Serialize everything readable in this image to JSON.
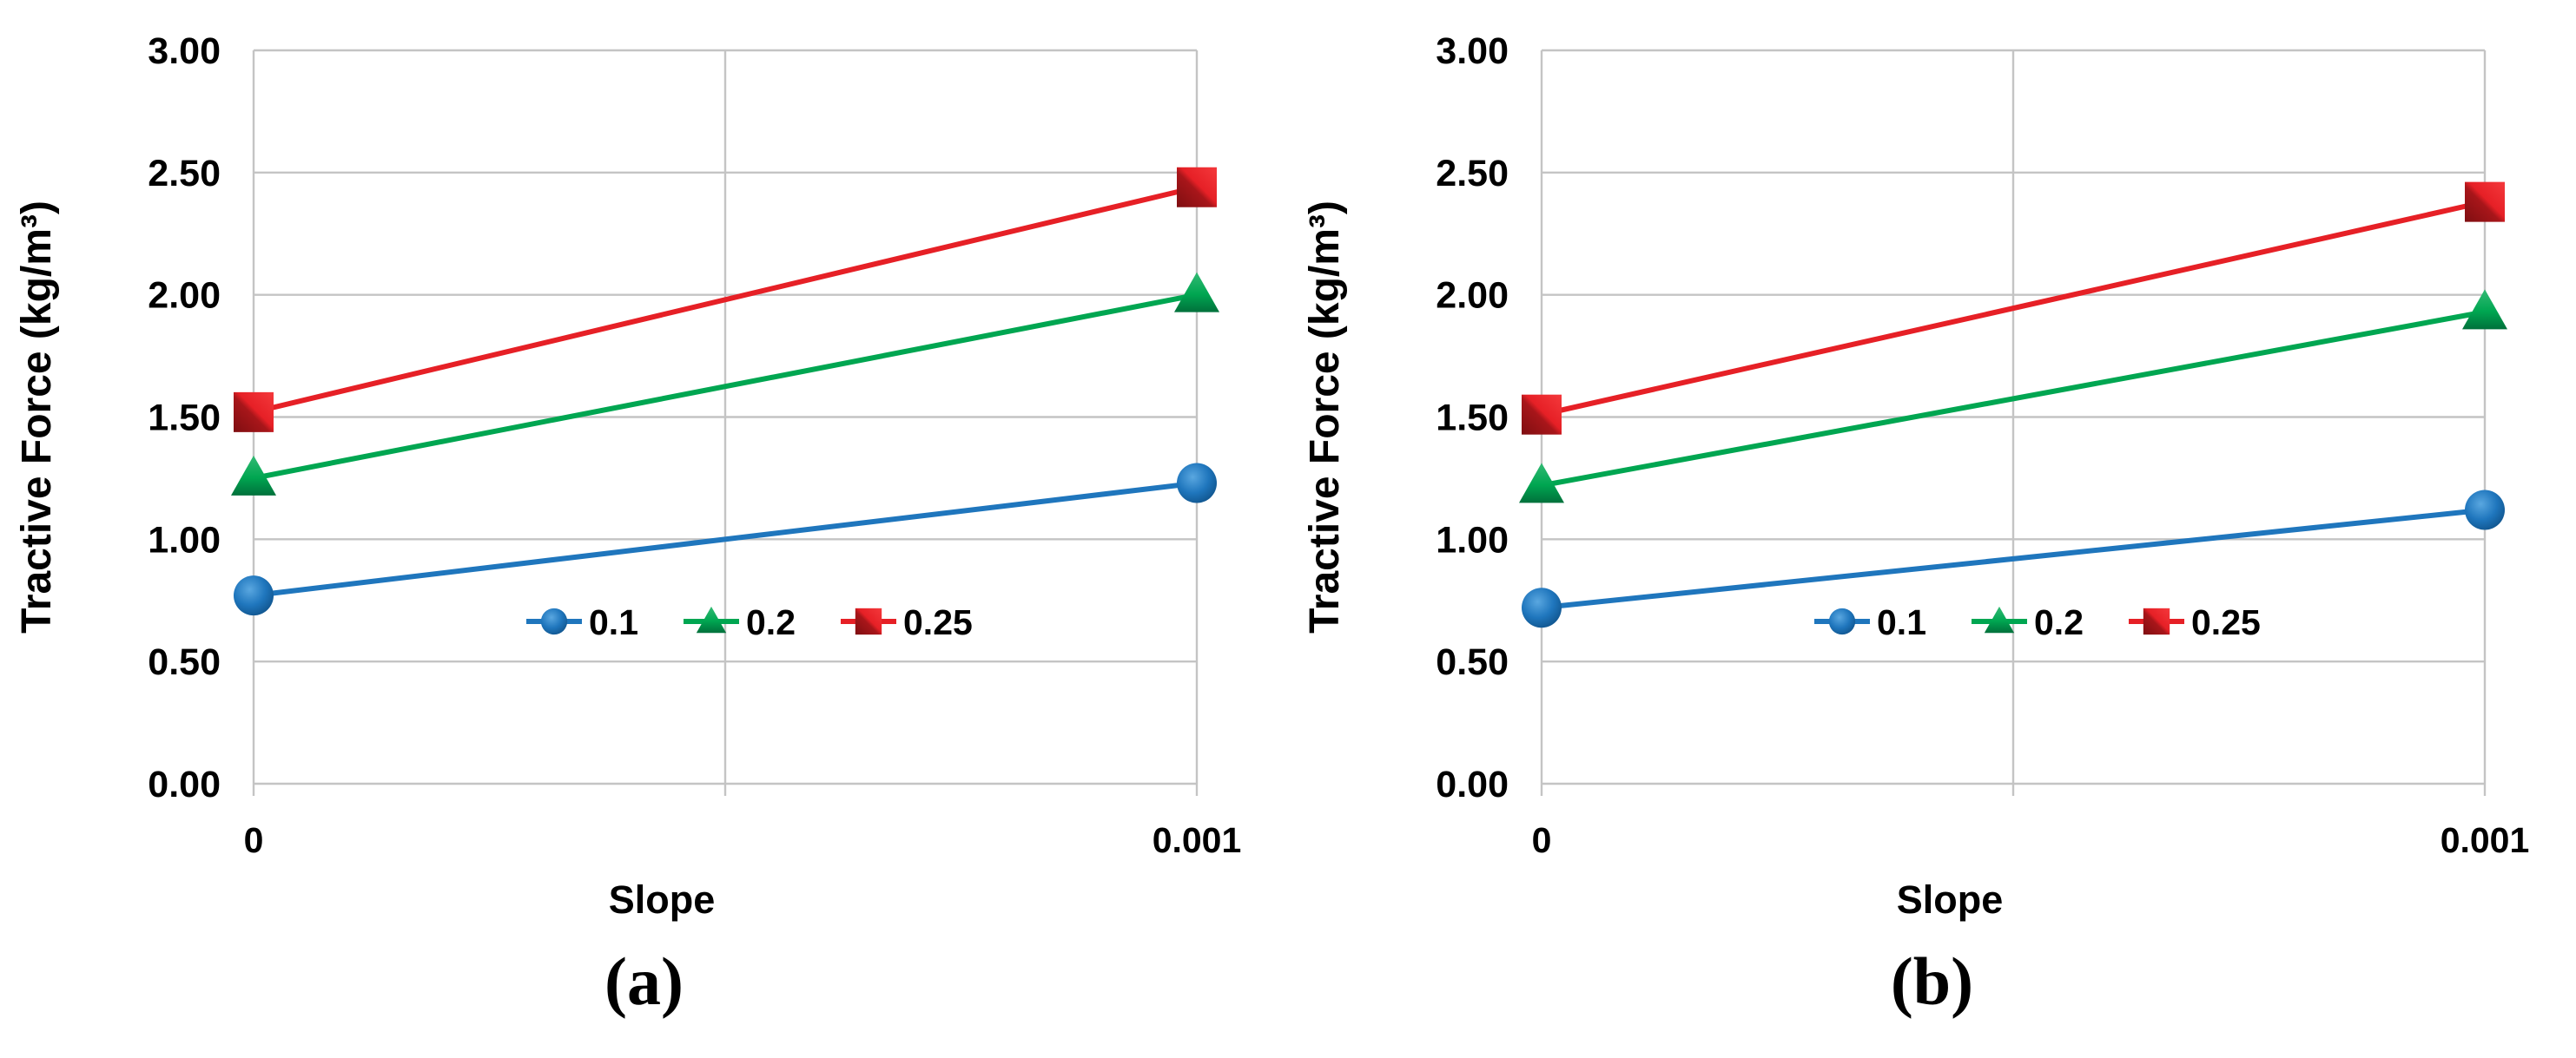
{
  "page": {
    "background": "#FFFFFF"
  },
  "chart_data": [
    {
      "type": "line",
      "caption": "(a)",
      "title": "",
      "xlabel": "Slope",
      "ylabel": "Tractive Force (kg/m³)",
      "x": [
        0,
        0.001
      ],
      "x_tick_labels": [
        "0",
        "0.001"
      ],
      "ylim": [
        0,
        3
      ],
      "ytick_step": 0.5,
      "y_tick_labels": [
        "0.00",
        "0.50",
        "1.00",
        "1.50",
        "2.00",
        "2.50",
        "3.00"
      ],
      "grid": true,
      "legend_position": "inside-bottom-center",
      "series": [
        {
          "name": "0.1",
          "marker": "circle",
          "color": "#1F76BD",
          "values": [
            0.77,
            1.23
          ]
        },
        {
          "name": "0.2",
          "marker": "triangle",
          "color": "#00A651",
          "values": [
            1.25,
            2.0
          ]
        },
        {
          "name": "0.25",
          "marker": "square",
          "color": "#E62026",
          "values": [
            1.52,
            2.44
          ]
        }
      ]
    },
    {
      "type": "line",
      "caption": "(b)",
      "title": "",
      "xlabel": "Slope",
      "ylabel": "Tractive Force (kg/m³)",
      "x": [
        0,
        0.001
      ],
      "x_tick_labels": [
        "0",
        "0.001"
      ],
      "ylim": [
        0,
        3
      ],
      "ytick_step": 0.5,
      "y_tick_labels": [
        "0.00",
        "0.50",
        "1.00",
        "1.50",
        "2.00",
        "2.50",
        "3.00"
      ],
      "grid": true,
      "legend_position": "inside-bottom-center",
      "series": [
        {
          "name": "0.1",
          "marker": "circle",
          "color": "#1F76BD",
          "values": [
            0.72,
            1.12
          ]
        },
        {
          "name": "0.2",
          "marker": "triangle",
          "color": "#00A651",
          "values": [
            1.22,
            1.93
          ]
        },
        {
          "name": "0.25",
          "marker": "square",
          "color": "#E62026",
          "values": [
            1.51,
            2.38
          ]
        }
      ]
    }
  ]
}
